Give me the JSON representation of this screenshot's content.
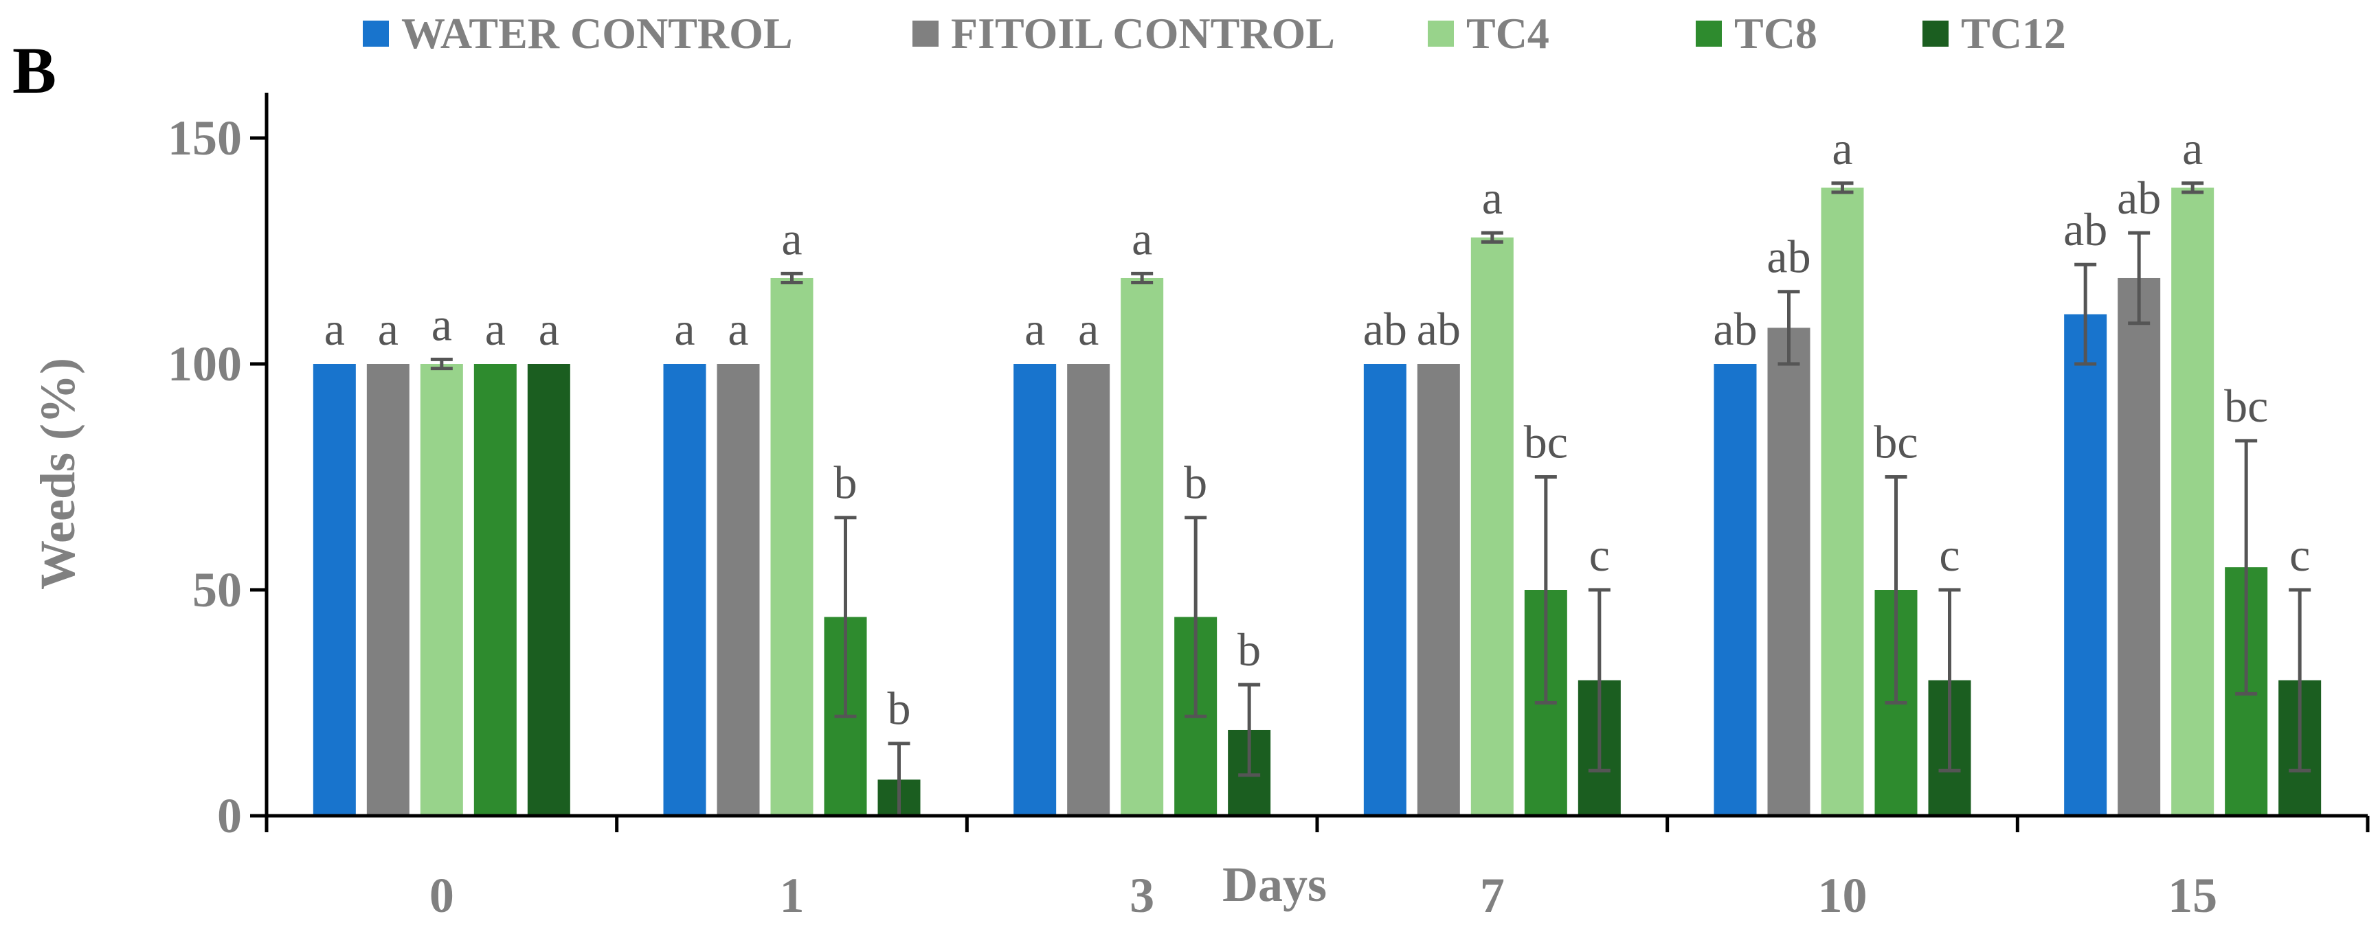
{
  "chart_data": {
    "type": "bar",
    "panel_label": "B",
    "xlabel": "Days",
    "ylabel": "Weeds (%)",
    "ylim": [
      0,
      160
    ],
    "yticks": [
      0,
      50,
      100,
      150
    ],
    "categories": [
      "0",
      "1",
      "3",
      "7",
      "10",
      "15"
    ],
    "legend_position": "top",
    "series": [
      {
        "name": "WATER CONTROL",
        "color": "#1874CD",
        "values": [
          100,
          100,
          100,
          100,
          100,
          111
        ],
        "errors": [
          0,
          0,
          0,
          0,
          0,
          11
        ],
        "letters": [
          "a",
          "a",
          "a",
          "ab",
          "ab",
          "ab"
        ]
      },
      {
        "name": "FITOIL CONTROL",
        "color": "#808080",
        "values": [
          100,
          100,
          100,
          100,
          108,
          119
        ],
        "errors": [
          0,
          0,
          0,
          0,
          8,
          10
        ],
        "letters": [
          "a",
          "a",
          "a",
          "ab",
          "ab",
          "ab"
        ]
      },
      {
        "name": "TC4",
        "color": "#98D38B",
        "values": [
          100,
          119,
          119,
          128,
          139,
          139
        ],
        "errors": [
          1,
          1,
          1,
          1,
          1,
          1
        ],
        "letters": [
          "a",
          "a",
          "a",
          "a",
          "a",
          "a"
        ]
      },
      {
        "name": "TC8",
        "color": "#2E8B2E",
        "values": [
          100,
          44,
          44,
          50,
          50,
          55
        ],
        "errors": [
          0,
          22,
          22,
          25,
          25,
          28
        ],
        "letters": [
          "a",
          "b",
          "b",
          "bc",
          "bc",
          "bc"
        ]
      },
      {
        "name": "TC12",
        "color": "#1B5E20",
        "values": [
          100,
          8,
          19,
          30,
          30,
          30
        ],
        "errors": [
          0,
          8,
          10,
          20,
          20,
          20
        ],
        "letters": [
          "a",
          "b",
          "b",
          "c",
          "c",
          "c"
        ]
      }
    ]
  }
}
